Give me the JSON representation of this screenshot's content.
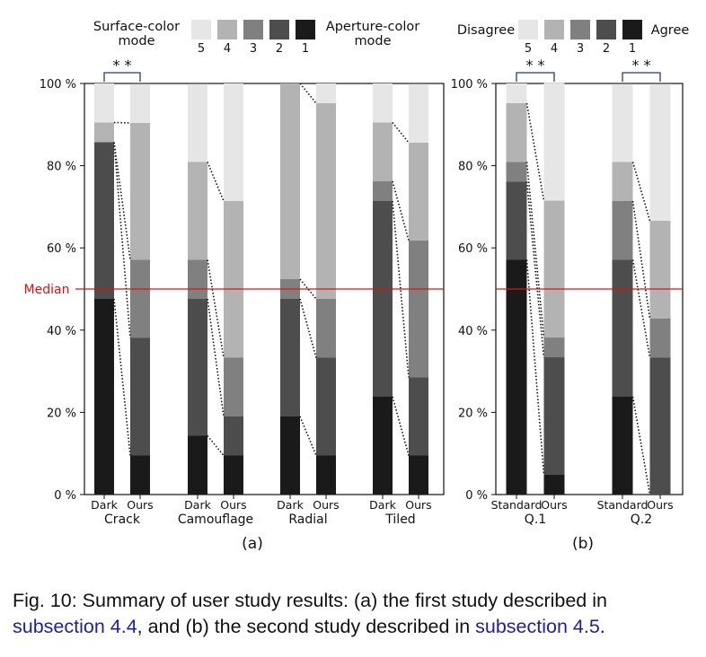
{
  "chart_data": [
    {
      "type": "bar",
      "stacked": true,
      "panel_label": "(a)",
      "legend": {
        "left_label": "Surface-color mode",
        "right_label": "Aperture-color mode",
        "levels": [
          "5",
          "4",
          "3",
          "2",
          "1"
        ],
        "colors": {
          "5": "#e6e6e6",
          "4": "#b3b3b3",
          "3": "#808080",
          "2": "#4d4d4d",
          "1": "#1a1a1a"
        }
      },
      "ylim": [
        0,
        100
      ],
      "yticks": [
        "0 %",
        "20 %",
        "40 %",
        "60 %",
        "80 %",
        "100 %"
      ],
      "median": {
        "label": "Median",
        "value": 50,
        "color": "#e01010"
      },
      "groups": [
        {
          "name": "Crack",
          "bars": [
            {
              "label": "Dark",
              "values": {
                "1": 47.6,
                "2": 38.1,
                "3": 0,
                "4": 4.8,
                "5": 9.5
              }
            },
            {
              "label": "Ours",
              "values": {
                "1": 9.5,
                "2": 28.6,
                "3": 19.0,
                "4": 33.3,
                "5": 9.5
              }
            }
          ],
          "significance": "* *"
        },
        {
          "name": "Camouflage",
          "bars": [
            {
              "label": "Dark",
              "values": {
                "1": 14.3,
                "2": 33.3,
                "3": 9.5,
                "4": 23.8,
                "5": 19.0
              }
            },
            {
              "label": "Ours",
              "values": {
                "1": 9.5,
                "2": 9.5,
                "3": 14.3,
                "4": 38.1,
                "5": 28.6
              }
            }
          ]
        },
        {
          "name": "Radial",
          "bars": [
            {
              "label": "Dark",
              "values": {
                "1": 19.0,
                "2": 28.6,
                "3": 4.8,
                "4": 47.6,
                "5": 0
              }
            },
            {
              "label": "Ours",
              "values": {
                "1": 9.5,
                "2": 23.8,
                "3": 14.3,
                "4": 47.6,
                "5": 4.8
              }
            }
          ]
        },
        {
          "name": "Tiled",
          "bars": [
            {
              "label": "Dark",
              "values": {
                "1": 23.8,
                "2": 47.6,
                "3": 4.8,
                "4": 14.3,
                "5": 9.5
              }
            },
            {
              "label": "Ours",
              "values": {
                "1": 9.5,
                "2": 19.0,
                "3": 33.3,
                "4": 23.8,
                "5": 14.3
              }
            }
          ]
        }
      ]
    },
    {
      "type": "bar",
      "stacked": true,
      "panel_label": "(b)",
      "legend": {
        "left_label": "Disagree",
        "right_label": "Agree",
        "levels": [
          "5",
          "4",
          "3",
          "2",
          "1"
        ],
        "colors": {
          "5": "#e6e6e6",
          "4": "#b3b3b3",
          "3": "#808080",
          "2": "#4d4d4d",
          "1": "#1a1a1a"
        }
      },
      "ylim": [
        0,
        100
      ],
      "yticks": [
        "0 %",
        "20 %",
        "40 %",
        "60 %",
        "80 %",
        "100 %"
      ],
      "median": {
        "value": 50,
        "color": "#e01010"
      },
      "groups": [
        {
          "name": "Q.1",
          "bars": [
            {
              "label": "Standard",
              "values": {
                "1": 57.1,
                "2": 19.0,
                "3": 4.8,
                "4": 14.3,
                "5": 4.8
              }
            },
            {
              "label": "Ours",
              "values": {
                "1": 4.8,
                "2": 28.6,
                "3": 4.8,
                "4": 33.3,
                "5": 28.6
              }
            }
          ],
          "significance": "* *"
        },
        {
          "name": "Q.2",
          "bars": [
            {
              "label": "Standard",
              "values": {
                "1": 23.8,
                "2": 33.3,
                "3": 14.3,
                "4": 9.5,
                "5": 19.0
              }
            },
            {
              "label": "Ours",
              "values": {
                "1": 0,
                "2": 33.3,
                "3": 9.5,
                "4": 23.8,
                "5": 33.3
              }
            }
          ],
          "significance": "* *"
        }
      ]
    }
  ],
  "caption": {
    "prefix": "Fig. 10: Summary of user study results: (a) the first study described in ",
    "ref1": "subsection 4.4",
    "middle": ", and (b) the second study described in ",
    "ref2": "subsection 4.5",
    "suffix": "."
  }
}
